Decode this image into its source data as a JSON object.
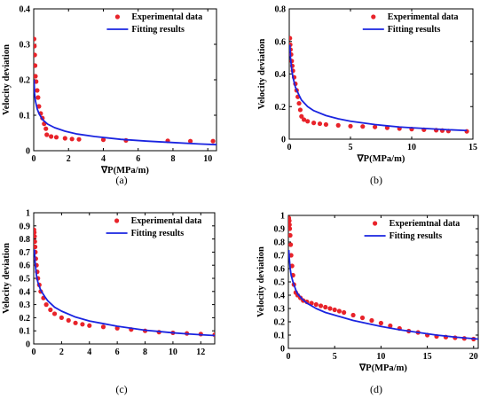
{
  "colors": {
    "experimental": "#e8232a",
    "fitting": "#1a24e0",
    "axis": "#000000"
  },
  "chart_data": [
    {
      "type": "scatter",
      "caption": "(a)",
      "xlabel": "∇P(MPa/m)",
      "ylabel": "Velocity deviation",
      "xlim": [
        0,
        10.5
      ],
      "ylim": [
        0,
        0.4
      ],
      "xticks": [
        "0",
        "2",
        "4",
        "6",
        "8",
        "10"
      ],
      "yticks": [
        "0",
        "0.1",
        "0.2",
        "0.3",
        "0.4"
      ],
      "legend_position": "top-right",
      "series": [
        {
          "name": "Experimental data",
          "kind": "points",
          "x": [
            0.02,
            0.04,
            0.06,
            0.08,
            0.1,
            0.14,
            0.2,
            0.25,
            0.3,
            0.4,
            0.5,
            0.6,
            0.7,
            0.75,
            1.0,
            1.3,
            1.8,
            2.2,
            2.6,
            4.0,
            5.3,
            7.7,
            9.0,
            10.3
          ],
          "y": [
            0.315,
            0.295,
            0.27,
            0.24,
            0.21,
            0.195,
            0.17,
            0.15,
            0.125,
            0.105,
            0.092,
            0.076,
            0.062,
            0.045,
            0.04,
            0.038,
            0.035,
            0.033,
            0.032,
            0.031,
            0.029,
            0.028,
            0.027,
            0.027
          ]
        },
        {
          "name": "Fitting results",
          "kind": "curve",
          "x": [
            0.02,
            0.05,
            0.1,
            0.2,
            0.3,
            0.5,
            0.8,
            1.2,
            1.8,
            2.5,
            3.5,
            5.0,
            6.5,
            8.0,
            9.5,
            10.5
          ],
          "y": [
            0.2,
            0.162,
            0.14,
            0.118,
            0.105,
            0.088,
            0.075,
            0.065,
            0.055,
            0.047,
            0.04,
            0.032,
            0.027,
            0.023,
            0.019,
            0.017
          ]
        }
      ]
    },
    {
      "type": "scatter",
      "caption": "(b)",
      "xlabel": "∇P(MPa/m)",
      "ylabel": "Velocity deviation",
      "xlim": [
        0,
        15
      ],
      "ylim": [
        0,
        0.8
      ],
      "xticks": [
        "0",
        "5",
        "10",
        "15"
      ],
      "yticks": [
        "0",
        "0.2",
        "0.4",
        "0.6",
        "0.8"
      ],
      "legend_position": "top-right",
      "series": [
        {
          "name": "Experimental data",
          "kind": "points",
          "x": [
            0.05,
            0.08,
            0.1,
            0.15,
            0.2,
            0.25,
            0.3,
            0.4,
            0.5,
            0.6,
            0.7,
            0.8,
            0.9,
            1.0,
            1.2,
            1.5,
            2.0,
            2.5,
            3.0,
            4.0,
            5.0,
            6.0,
            7.0,
            8.0,
            9.0,
            10.0,
            11.0,
            12.0,
            12.5,
            13.0,
            14.5
          ],
          "y": [
            0.62,
            0.58,
            0.55,
            0.52,
            0.48,
            0.45,
            0.42,
            0.38,
            0.34,
            0.3,
            0.26,
            0.22,
            0.18,
            0.14,
            0.12,
            0.11,
            0.1,
            0.095,
            0.09,
            0.085,
            0.08,
            0.078,
            0.075,
            0.07,
            0.065,
            0.062,
            0.058,
            0.055,
            0.053,
            0.05,
            0.048
          ]
        },
        {
          "name": "Fitting results",
          "kind": "curve",
          "x": [
            0.05,
            0.1,
            0.2,
            0.3,
            0.5,
            0.8,
            1.0,
            1.5,
            2.0,
            3.0,
            4.0,
            5.0,
            6.0,
            7.0,
            8.0,
            9.0,
            10.0,
            11.0,
            12.0,
            13.0,
            14.5
          ],
          "y": [
            0.58,
            0.5,
            0.43,
            0.38,
            0.32,
            0.27,
            0.24,
            0.2,
            0.175,
            0.145,
            0.125,
            0.11,
            0.1,
            0.09,
            0.082,
            0.075,
            0.07,
            0.066,
            0.062,
            0.058,
            0.053
          ]
        }
      ]
    },
    {
      "type": "scatter",
      "caption": "(c)",
      "xlabel": "",
      "ylabel": "Velocity deviation",
      "xlim": [
        0,
        13
      ],
      "ylim": [
        0,
        1
      ],
      "xticks": [
        "0",
        "2",
        "4",
        "6",
        "8",
        "10",
        "12"
      ],
      "yticks": [
        "0",
        "0.1",
        "0.2",
        "0.3",
        "0.4",
        "0.5",
        "0.6",
        "0.7",
        "0.8",
        "0.9",
        "1"
      ],
      "legend_position": "top-right",
      "series": [
        {
          "name": "Experimental data",
          "kind": "points",
          "x": [
            0.02,
            0.04,
            0.06,
            0.08,
            0.1,
            0.12,
            0.15,
            0.2,
            0.25,
            0.3,
            0.4,
            0.5,
            0.7,
            0.9,
            1.2,
            1.5,
            2.0,
            2.5,
            3.0,
            3.5,
            4.0,
            5.0,
            6.0,
            7.0,
            8.0,
            9.0,
            10.0,
            11.0,
            12.0,
            13.0
          ],
          "y": [
            0.87,
            0.85,
            0.82,
            0.78,
            0.74,
            0.7,
            0.65,
            0.6,
            0.55,
            0.5,
            0.45,
            0.4,
            0.35,
            0.3,
            0.26,
            0.23,
            0.2,
            0.18,
            0.16,
            0.15,
            0.14,
            0.13,
            0.12,
            0.11,
            0.1,
            0.09,
            0.085,
            0.08,
            0.075,
            0.07
          ]
        },
        {
          "name": "Fitting results",
          "kind": "curve",
          "x": [
            0.05,
            0.1,
            0.2,
            0.3,
            0.5,
            0.8,
            1.0,
            1.5,
            2.0,
            3.0,
            4.0,
            5.0,
            6.0,
            7.0,
            8.0,
            9.0,
            10.0,
            11.0,
            12.0,
            13.0
          ],
          "y": [
            0.72,
            0.62,
            0.52,
            0.47,
            0.41,
            0.36,
            0.33,
            0.28,
            0.25,
            0.205,
            0.175,
            0.155,
            0.135,
            0.12,
            0.105,
            0.095,
            0.085,
            0.077,
            0.07,
            0.064
          ]
        }
      ]
    },
    {
      "type": "scatter",
      "caption": "(d)",
      "xlabel": "∇P(MPa/m)",
      "ylabel": "Velocity deviation",
      "xlim": [
        0,
        20.5
      ],
      "ylim": [
        0,
        1
      ],
      "xticks": [
        "0",
        "5",
        "10",
        "15",
        "20"
      ],
      "yticks": [
        "0",
        "0.1",
        "0.2",
        "0.3",
        "0.4",
        "0.5",
        "0.6",
        "0.7",
        "0.8",
        "0.9",
        "1"
      ],
      "legend_position": "top-right",
      "series": [
        {
          "name": "Experiemtnal data",
          "kind": "points",
          "x": [
            0.05,
            0.1,
            0.12,
            0.15,
            0.2,
            0.25,
            0.3,
            0.4,
            0.5,
            0.6,
            0.8,
            1.0,
            1.3,
            1.6,
            2.0,
            2.5,
            3.0,
            3.5,
            4.0,
            4.5,
            5.0,
            5.5,
            6.0,
            7.0,
            8.0,
            9.0,
            10.0,
            11.0,
            12.0,
            13.0,
            14.0,
            15.0,
            16.0,
            17.0,
            18.0,
            19.0,
            20.0
          ],
          "y": [
            0.98,
            0.96,
            0.93,
            0.9,
            0.85,
            0.78,
            0.7,
            0.62,
            0.55,
            0.48,
            0.42,
            0.4,
            0.38,
            0.36,
            0.35,
            0.34,
            0.33,
            0.32,
            0.31,
            0.3,
            0.29,
            0.28,
            0.27,
            0.25,
            0.23,
            0.21,
            0.19,
            0.17,
            0.15,
            0.13,
            0.12,
            0.1,
            0.09,
            0.085,
            0.08,
            0.075,
            0.07
          ]
        },
        {
          "name": "Fitting results",
          "kind": "curve",
          "x": [
            0.05,
            0.1,
            0.2,
            0.3,
            0.5,
            0.8,
            1.0,
            1.5,
            2.0,
            3.0,
            4.0,
            5.0,
            6.0,
            7.0,
            8.0,
            10.0,
            12.0,
            14.0,
            16.0,
            18.0,
            20.5
          ],
          "y": [
            0.74,
            0.68,
            0.6,
            0.55,
            0.5,
            0.44,
            0.41,
            0.37,
            0.34,
            0.3,
            0.27,
            0.25,
            0.23,
            0.21,
            0.195,
            0.165,
            0.14,
            0.12,
            0.1,
            0.085,
            0.07
          ]
        }
      ]
    }
  ]
}
